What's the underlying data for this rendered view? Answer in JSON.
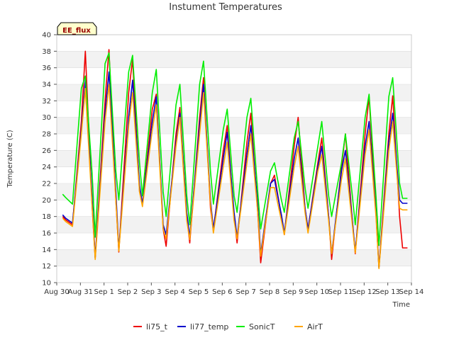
{
  "chart_data": {
    "type": "line",
    "title": "Instument Temperatures",
    "xlabel": "Time",
    "ylabel": "Temperature (C)",
    "ylim": [
      10,
      40
    ],
    "yticks": [
      10,
      12,
      14,
      16,
      18,
      20,
      22,
      24,
      26,
      28,
      30,
      32,
      34,
      36,
      38,
      40
    ],
    "xlim": [
      "2016-08-30",
      "2016-09-14"
    ],
    "xticks": [
      "Aug 30",
      "Aug 31",
      "Sep 1",
      "Sep 2",
      "Sep 3",
      "Sep 4",
      "Sep 5",
      "Sep 6",
      "Sep 7",
      "Sep 8",
      "Sep 9",
      "Sep 10",
      "Sep 11",
      "Sep 12",
      "Sep 13",
      "Sep 14"
    ],
    "grid": "horizontal bands",
    "legend": "bottom",
    "annotation": "EE_flux",
    "colors": {
      "li75_t": "#ee0000",
      "li77_temp": "#0000cc",
      "SonicT": "#00ee00",
      "AirT": "#ffa500"
    },
    "series": [
      {
        "name": "li75_t",
        "x": [
          "2016-08-30T06:00",
          "2016-08-30T09:00",
          "2016-08-30T16:00",
          "2016-08-31T01:00",
          "2016-08-31T05:00",
          "2016-08-31T12:00",
          "2016-08-31T15:00",
          "2016-09-01T01:00",
          "2016-09-01T05:00",
          "2016-09-01T12:00",
          "2016-09-01T15:00",
          "2016-09-02T01:00",
          "2016-09-02T05:00",
          "2016-09-02T12:00",
          "2016-09-02T15:00",
          "2016-09-03T01:00",
          "2016-09-03T05:00",
          "2016-09-03T12:00",
          "2016-09-03T15:00",
          "2016-09-04T01:00",
          "2016-09-04T05:00",
          "2016-09-04T12:00",
          "2016-09-04T15:00",
          "2016-09-05T01:00",
          "2016-09-05T05:00",
          "2016-09-05T12:00",
          "2016-09-05T15:00",
          "2016-09-06T01:00",
          "2016-09-06T05:00",
          "2016-09-06T12:00",
          "2016-09-06T15:00",
          "2016-09-07T01:00",
          "2016-09-07T05:00",
          "2016-09-07T12:00",
          "2016-09-07T15:00",
          "2016-09-08T01:00",
          "2016-09-08T05:00",
          "2016-09-08T12:00",
          "2016-09-08T15:00",
          "2016-09-09T01:00",
          "2016-09-09T05:00",
          "2016-09-09T12:00",
          "2016-09-09T15:00",
          "2016-09-10T01:00",
          "2016-09-10T05:00",
          "2016-09-10T12:00",
          "2016-09-10T15:00",
          "2016-09-11T01:00",
          "2016-09-11T05:00",
          "2016-09-11T12:00",
          "2016-09-11T15:00",
          "2016-09-12T01:00",
          "2016-09-12T05:00",
          "2016-09-12T12:00",
          "2016-09-12T15:00",
          "2016-09-13T01:00",
          "2016-09-13T05:00",
          "2016-09-13T12:00",
          "2016-09-13T15:00",
          "2016-09-13T20:00"
        ],
        "values": [
          18.0,
          17.6,
          17.0,
          29.5,
          38.0,
          19.0,
          13.0,
          32.0,
          38.2,
          20.0,
          13.7,
          33.0,
          37.0,
          21.0,
          19.5,
          31.0,
          32.8,
          16.5,
          14.4,
          28.0,
          31.2,
          18.0,
          14.8,
          30.0,
          34.8,
          19.0,
          16.3,
          26.0,
          29.0,
          18.0,
          14.8,
          27.0,
          30.5,
          18.5,
          12.4,
          22.0,
          23.0,
          18.0,
          15.8,
          26.5,
          30.0,
          19.0,
          16.4,
          24.5,
          27.5,
          18.0,
          12.8,
          24.0,
          28.0,
          17.5,
          13.5,
          28.0,
          32.5,
          18.5,
          11.8,
          28.0,
          32.6,
          18.0,
          14.2,
          14.2
        ]
      },
      {
        "name": "li77_temp",
        "x": [
          "2016-08-30T06:00",
          "2016-08-30T09:00",
          "2016-08-30T16:00",
          "2016-08-31T01:00",
          "2016-08-31T05:00",
          "2016-08-31T12:00",
          "2016-08-31T15:00",
          "2016-09-01T01:00",
          "2016-09-01T05:00",
          "2016-09-01T12:00",
          "2016-09-01T15:00",
          "2016-09-02T01:00",
          "2016-09-02T05:00",
          "2016-09-02T12:00",
          "2016-09-02T15:00",
          "2016-09-03T01:00",
          "2016-09-03T05:00",
          "2016-09-03T12:00",
          "2016-09-03T15:00",
          "2016-09-04T01:00",
          "2016-09-04T05:00",
          "2016-09-04T12:00",
          "2016-09-04T15:00",
          "2016-09-05T01:00",
          "2016-09-05T05:00",
          "2016-09-05T12:00",
          "2016-09-05T15:00",
          "2016-09-06T01:00",
          "2016-09-06T05:00",
          "2016-09-06T12:00",
          "2016-09-06T15:00",
          "2016-09-07T01:00",
          "2016-09-07T05:00",
          "2016-09-07T12:00",
          "2016-09-07T15:00",
          "2016-09-08T01:00",
          "2016-09-08T05:00",
          "2016-09-08T12:00",
          "2016-09-08T15:00",
          "2016-09-09T01:00",
          "2016-09-09T05:00",
          "2016-09-09T12:00",
          "2016-09-09T15:00",
          "2016-09-10T01:00",
          "2016-09-10T05:00",
          "2016-09-10T12:00",
          "2016-09-10T15:00",
          "2016-09-11T01:00",
          "2016-09-11T05:00",
          "2016-09-11T12:00",
          "2016-09-11T15:00",
          "2016-09-12T01:00",
          "2016-09-12T05:00",
          "2016-09-12T12:00",
          "2016-09-12T15:00",
          "2016-09-13T01:00",
          "2016-09-13T05:00",
          "2016-09-13T12:00",
          "2016-09-13T15:00",
          "2016-09-13T20:00"
        ],
        "values": [
          18.2,
          17.8,
          17.2,
          28.5,
          34.5,
          20.0,
          13.0,
          30.5,
          35.5,
          21.0,
          14.0,
          30.0,
          34.5,
          21.8,
          19.5,
          29.5,
          32.5,
          17.0,
          15.8,
          27.0,
          30.5,
          18.5,
          15.5,
          29.0,
          34.0,
          20.0,
          16.5,
          25.0,
          28.2,
          18.5,
          15.5,
          25.5,
          29.0,
          19.5,
          13.5,
          22.0,
          22.5,
          18.2,
          16.0,
          25.0,
          27.5,
          19.0,
          16.5,
          24.0,
          26.5,
          18.0,
          13.5,
          23.5,
          26.0,
          17.5,
          13.8,
          26.5,
          29.5,
          18.5,
          11.8,
          27.0,
          30.5,
          20.0,
          19.6,
          19.6
        ]
      },
      {
        "name": "SonicT",
        "x": [
          "2016-08-30T06:00",
          "2016-08-30T09:00",
          "2016-08-30T16:00",
          "2016-08-31T01:00",
          "2016-08-31T05:00",
          "2016-08-31T12:00",
          "2016-08-31T15:00",
          "2016-09-01T01:00",
          "2016-09-01T05:00",
          "2016-09-01T12:00",
          "2016-09-01T15:00",
          "2016-09-02T01:00",
          "2016-09-02T05:00",
          "2016-09-02T12:00",
          "2016-09-02T15:00",
          "2016-09-03T01:00",
          "2016-09-03T05:00",
          "2016-09-03T12:00",
          "2016-09-03T15:00",
          "2016-09-04T01:00",
          "2016-09-04T05:00",
          "2016-09-04T12:00",
          "2016-09-04T15:00",
          "2016-09-05T01:00",
          "2016-09-05T05:00",
          "2016-09-05T12:00",
          "2016-09-05T15:00",
          "2016-09-06T01:00",
          "2016-09-06T05:00",
          "2016-09-06T12:00",
          "2016-09-06T15:00",
          "2016-09-07T01:00",
          "2016-09-07T05:00",
          "2016-09-07T12:00",
          "2016-09-07T15:00",
          "2016-09-08T01:00",
          "2016-09-08T05:00",
          "2016-09-08T12:00",
          "2016-09-08T15:00",
          "2016-09-09T01:00",
          "2016-09-09T05:00",
          "2016-09-09T12:00",
          "2016-09-09T15:00",
          "2016-09-10T01:00",
          "2016-09-10T05:00",
          "2016-09-10T12:00",
          "2016-09-10T15:00",
          "2016-09-11T01:00",
          "2016-09-11T05:00",
          "2016-09-11T12:00",
          "2016-09-11T15:00",
          "2016-09-12T01:00",
          "2016-09-12T05:00",
          "2016-09-12T12:00",
          "2016-09-12T15:00",
          "2016-09-13T01:00",
          "2016-09-13T05:00",
          "2016-09-13T12:00",
          "2016-09-13T15:00",
          "2016-09-13T20:00"
        ],
        "values": [
          20.7,
          20.3,
          19.5,
          33.5,
          35.0,
          23.0,
          15.5,
          36.5,
          37.8,
          23.5,
          20.0,
          35.5,
          37.5,
          24.5,
          20.5,
          33.0,
          35.8,
          21.0,
          18.0,
          31.5,
          34.0,
          20.5,
          17.0,
          34.0,
          36.8,
          23.5,
          19.5,
          28.5,
          31.0,
          20.5,
          18.5,
          30.0,
          32.3,
          21.0,
          16.5,
          23.5,
          24.5,
          20.0,
          18.5,
          27.5,
          29.5,
          21.5,
          19.0,
          26.5,
          29.5,
          20.5,
          18.0,
          24.5,
          28.0,
          20.5,
          17.0,
          30.0,
          32.8,
          20.5,
          14.5,
          32.5,
          34.8,
          22.0,
          20.2,
          20.2
        ]
      },
      {
        "name": "AirT",
        "x": [
          "2016-08-30T06:00",
          "2016-08-30T09:00",
          "2016-08-30T16:00",
          "2016-08-31T01:00",
          "2016-08-31T05:00",
          "2016-08-31T12:00",
          "2016-08-31T15:00",
          "2016-09-01T01:00",
          "2016-09-01T05:00",
          "2016-09-01T12:00",
          "2016-09-01T15:00",
          "2016-09-02T01:00",
          "2016-09-02T05:00",
          "2016-09-02T12:00",
          "2016-09-02T15:00",
          "2016-09-03T01:00",
          "2016-09-03T05:00",
          "2016-09-03T12:00",
          "2016-09-03T15:00",
          "2016-09-04T01:00",
          "2016-09-04T05:00",
          "2016-09-04T12:00",
          "2016-09-04T15:00",
          "2016-09-05T01:00",
          "2016-09-05T05:00",
          "2016-09-05T12:00",
          "2016-09-05T15:00",
          "2016-09-06T01:00",
          "2016-09-06T05:00",
          "2016-09-06T12:00",
          "2016-09-06T15:00",
          "2016-09-07T01:00",
          "2016-09-07T05:00",
          "2016-09-07T12:00",
          "2016-09-07T15:00",
          "2016-09-08T01:00",
          "2016-09-08T05:00",
          "2016-09-08T12:00",
          "2016-09-08T15:00",
          "2016-09-09T01:00",
          "2016-09-09T05:00",
          "2016-09-09T12:00",
          "2016-09-09T15:00",
          "2016-09-10T01:00",
          "2016-09-10T05:00",
          "2016-09-10T12:00",
          "2016-09-10T15:00",
          "2016-09-11T01:00",
          "2016-09-11T05:00",
          "2016-09-11T12:00",
          "2016-09-11T15:00",
          "2016-09-12T01:00",
          "2016-09-12T05:00",
          "2016-09-12T12:00",
          "2016-09-12T15:00",
          "2016-09-13T01:00",
          "2016-09-13T05:00",
          "2016-09-13T12:00",
          "2016-09-13T15:00",
          "2016-09-13T20:00"
        ],
        "values": [
          17.8,
          17.4,
          16.8,
          28.0,
          33.5,
          19.0,
          12.8,
          29.5,
          34.0,
          20.0,
          13.8,
          29.0,
          33.0,
          21.0,
          19.2,
          28.5,
          31.5,
          16.5,
          15.3,
          26.5,
          30.0,
          17.5,
          15.2,
          28.0,
          33.0,
          19.5,
          16.0,
          24.0,
          27.0,
          17.5,
          15.3,
          24.5,
          28.0,
          18.5,
          13.2,
          21.5,
          21.5,
          17.5,
          15.8,
          24.0,
          26.5,
          18.5,
          16.0,
          23.5,
          25.5,
          17.5,
          13.5,
          22.5,
          25.0,
          17.0,
          13.6,
          25.5,
          28.5,
          18.0,
          11.7,
          26.0,
          29.5,
          19.0,
          18.8,
          18.8
        ]
      }
    ]
  }
}
